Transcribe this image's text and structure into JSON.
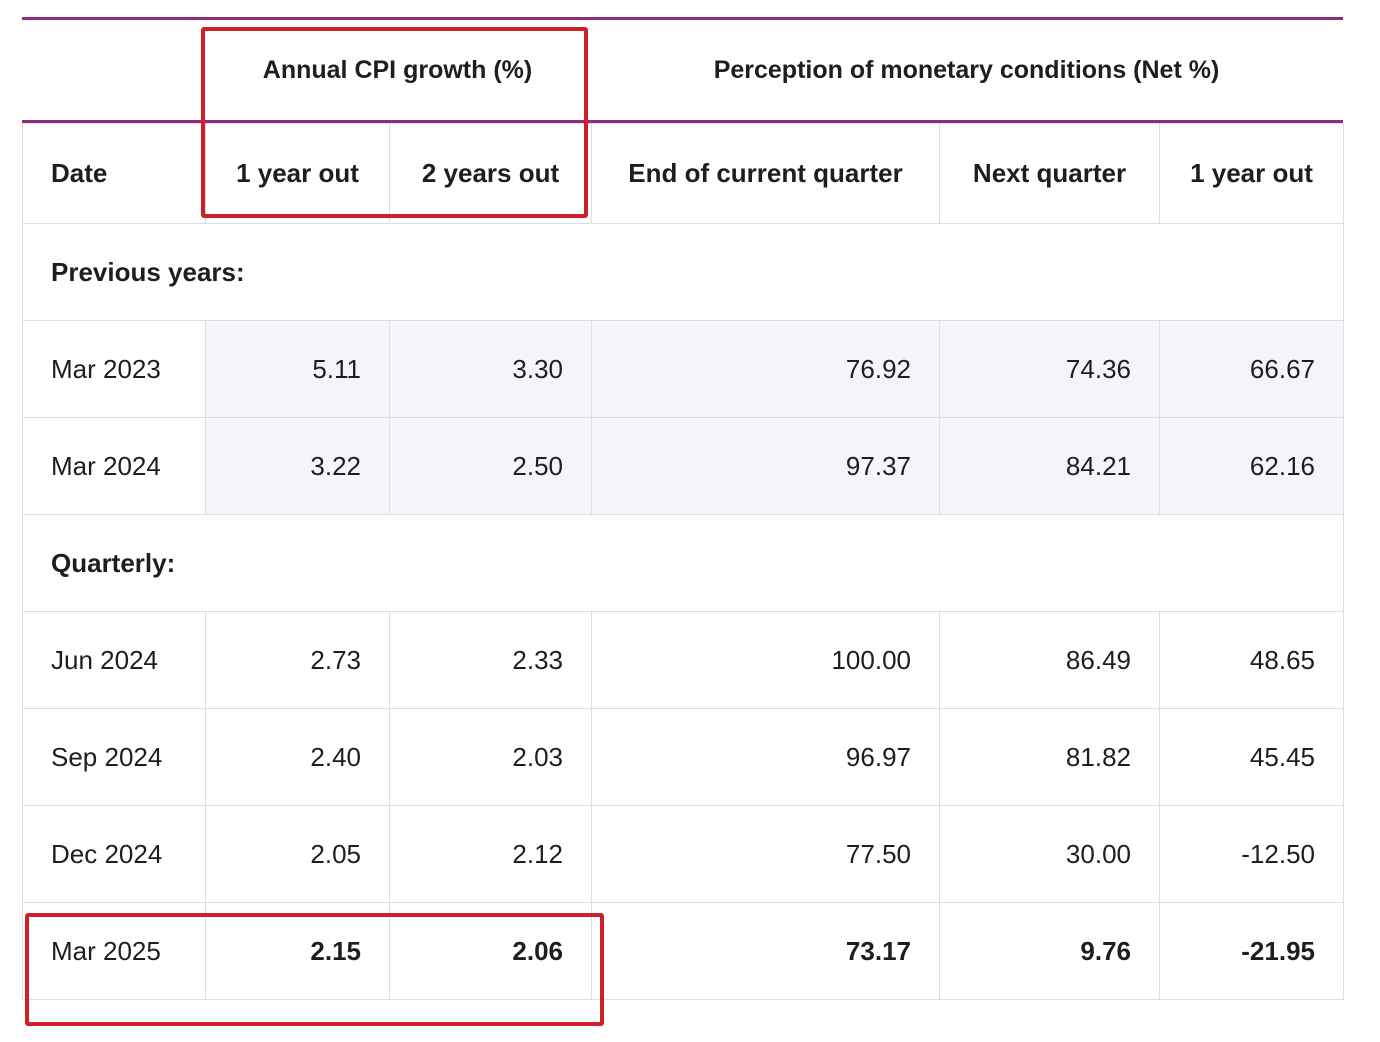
{
  "header": {
    "cpi_group": "Annual CPI growth (%)",
    "monetary_group": "Perception of monetary conditions (Net %)",
    "columns": [
      "Date",
      "1 year out",
      "2 years out",
      "End of current quarter",
      "Next quarter",
      "1 year out"
    ]
  },
  "sections": [
    {
      "label": "Previous years:",
      "rows": [
        {
          "date": "Mar 2023",
          "values": [
            "5.11",
            "3.30",
            "76.92",
            "74.36",
            "66.67"
          ]
        },
        {
          "date": "Mar 2024",
          "values": [
            "3.22",
            "2.50",
            "97.37",
            "84.21",
            "62.16"
          ]
        }
      ]
    },
    {
      "label": "Quarterly:",
      "rows": [
        {
          "date": "Jun 2024",
          "values": [
            "2.73",
            "2.33",
            "100.00",
            "86.49",
            "48.65"
          ]
        },
        {
          "date": "Sep 2024",
          "values": [
            "2.40",
            "2.03",
            "96.97",
            "81.82",
            "45.45"
          ]
        },
        {
          "date": "Dec 2024",
          "values": [
            "2.05",
            "2.12",
            "77.50",
            "30.00",
            "-12.50"
          ]
        },
        {
          "date": "Mar 2025",
          "values": [
            "2.15",
            "2.06",
            "73.17",
            "9.76",
            "-21.95"
          ]
        }
      ]
    }
  ],
  "colors": {
    "rule": "#8b2f7a",
    "highlight": "#d11f2a",
    "shaded_cell": "#f3f5f9"
  }
}
